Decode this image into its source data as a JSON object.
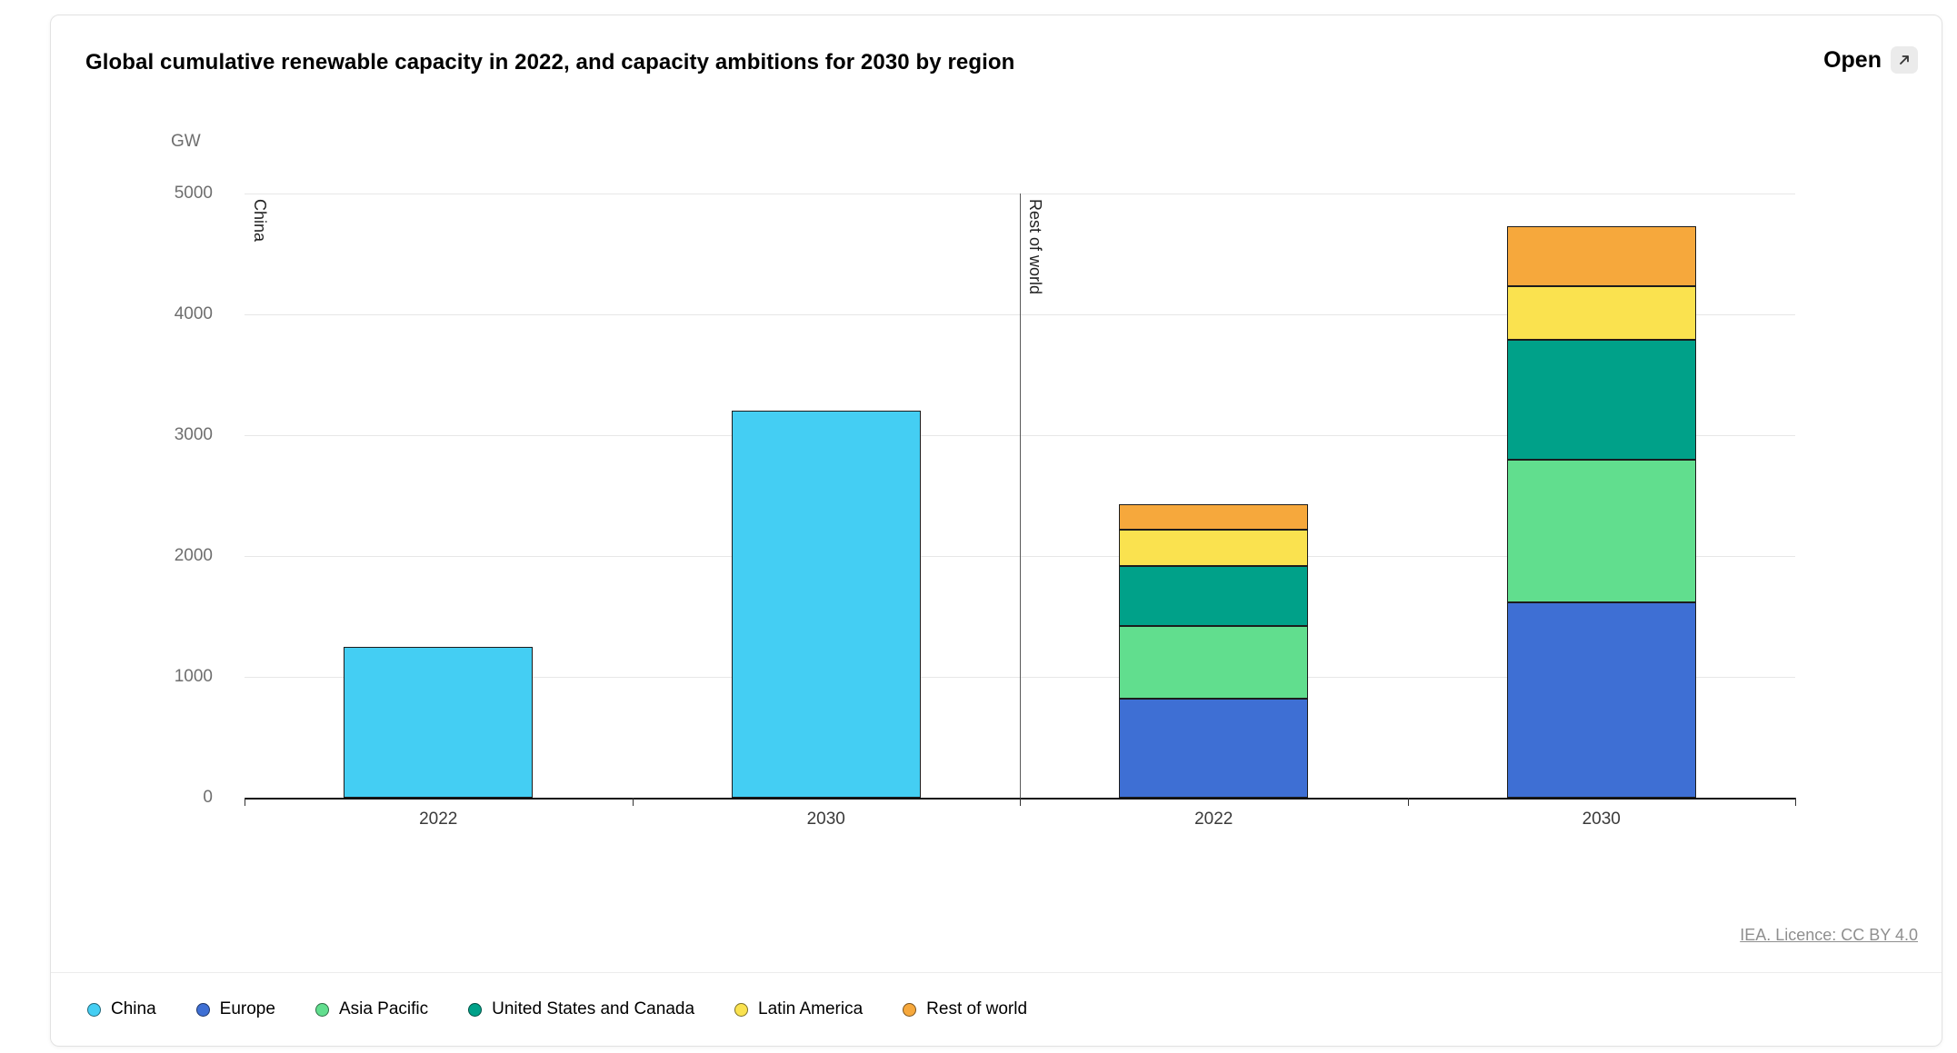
{
  "card": {
    "title": "Global cumulative renewable capacity in 2022, and capacity ambitions for 2030 by region",
    "open_label": "Open",
    "footer_link": "IEA. Licence: CC BY 4.0"
  },
  "chart_data": {
    "type": "bar",
    "stacked": true,
    "title": "Global cumulative renewable capacity in 2022, and capacity ambitions for 2030 by region",
    "unit_label": "GW",
    "ylabel": "GW",
    "ylim": [
      0,
      5000
    ],
    "yticks": [
      0,
      1000,
      2000,
      3000,
      4000,
      5000
    ],
    "grid": true,
    "legend_position": "bottom",
    "panels": [
      {
        "label": "China",
        "categories": [
          "2022",
          "2030"
        ],
        "series": [
          {
            "name": "China",
            "color": "#44CEF3",
            "values": [
              1250,
              3200
            ]
          }
        ]
      },
      {
        "label": "Rest of world",
        "categories": [
          "2022",
          "2030"
        ],
        "series": [
          {
            "name": "Europe",
            "color": "#3E6FD4",
            "values": [
              820,
              1620
            ]
          },
          {
            "name": "Asia Pacific",
            "color": "#61DE8E",
            "values": [
              600,
              1180
            ]
          },
          {
            "name": "United States and Canada",
            "color": "#00A189",
            "values": [
              500,
              990
            ]
          },
          {
            "name": "Latin America",
            "color": "#FAE24F",
            "values": [
              300,
              440
            ]
          },
          {
            "name": "Rest of world",
            "color": "#F6A83C",
            "values": [
              210,
              500
            ]
          }
        ]
      }
    ],
    "legend": [
      {
        "label": "China",
        "color": "#44CEF3"
      },
      {
        "label": "Europe",
        "color": "#3E6FD4"
      },
      {
        "label": "Asia Pacific",
        "color": "#61DE8E"
      },
      {
        "label": "United States and Canada",
        "color": "#00A189"
      },
      {
        "label": "Latin America",
        "color": "#FAE24F"
      },
      {
        "label": "Rest of world",
        "color": "#F6A83C"
      }
    ]
  }
}
